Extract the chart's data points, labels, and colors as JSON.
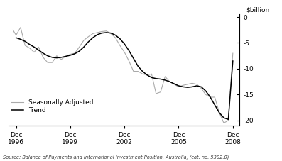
{
  "title": "",
  "ylabel": "$billion",
  "source": "Source: Balance of Payments and International Investment Position, Australia, (cat. no. 5302.0)",
  "ylim": [
    -21,
    0.5
  ],
  "yticks": [
    0,
    -5,
    -10,
    -15,
    -20
  ],
  "xtick_labels": [
    "Dec\n1996",
    "Dec\n1999",
    "Dec\n2002",
    "Dec\n2005",
    "Dec\n2008"
  ],
  "xtick_positions": [
    1996.92,
    1999.92,
    2002.92,
    2005.92,
    2008.92
  ],
  "trend_color": "#000000",
  "sa_color": "#aaaaaa",
  "background_color": "#ffffff",
  "legend_labels": [
    "Trend",
    "Seasonally Adjusted"
  ],
  "trend_x": [
    1996.92,
    1997.17,
    1997.42,
    1997.67,
    1997.92,
    1998.17,
    1998.42,
    1998.67,
    1998.92,
    1999.17,
    1999.42,
    1999.67,
    1999.92,
    2000.17,
    2000.42,
    2000.67,
    2000.92,
    2001.17,
    2001.42,
    2001.67,
    2001.92,
    2002.17,
    2002.42,
    2002.67,
    2002.92,
    2003.17,
    2003.42,
    2003.67,
    2003.92,
    2004.17,
    2004.42,
    2004.67,
    2004.92,
    2005.17,
    2005.42,
    2005.67,
    2005.92,
    2006.17,
    2006.42,
    2006.67,
    2006.92,
    2007.17,
    2007.42,
    2007.67,
    2007.92,
    2008.17,
    2008.42,
    2008.67,
    2008.92
  ],
  "trend_y": [
    -4.0,
    -4.3,
    -4.7,
    -5.3,
    -5.8,
    -6.4,
    -7.0,
    -7.5,
    -7.8,
    -7.9,
    -7.8,
    -7.6,
    -7.4,
    -7.1,
    -6.6,
    -5.8,
    -4.8,
    -4.0,
    -3.4,
    -3.1,
    -3.0,
    -3.1,
    -3.5,
    -4.2,
    -5.2,
    -6.5,
    -8.0,
    -9.5,
    -10.5,
    -11.2,
    -11.7,
    -11.9,
    -12.0,
    -12.2,
    -12.5,
    -12.9,
    -13.3,
    -13.5,
    -13.6,
    -13.5,
    -13.3,
    -13.5,
    -14.3,
    -15.5,
    -17.0,
    -18.5,
    -19.5,
    -19.8,
    -8.5
  ],
  "sa_x": [
    1996.75,
    1996.92,
    1997.17,
    1997.42,
    1997.67,
    1997.92,
    1998.17,
    1998.42,
    1998.67,
    1998.92,
    1999.17,
    1999.42,
    1999.67,
    1999.92,
    2000.17,
    2000.42,
    2000.67,
    2000.92,
    2001.17,
    2001.42,
    2001.67,
    2001.92,
    2002.17,
    2002.42,
    2002.67,
    2002.92,
    2003.17,
    2003.42,
    2003.67,
    2003.92,
    2004.17,
    2004.42,
    2004.67,
    2004.92,
    2005.17,
    2005.42,
    2005.67,
    2005.92,
    2006.17,
    2006.42,
    2006.67,
    2006.92,
    2007.17,
    2007.42,
    2007.67,
    2007.92,
    2008.17,
    2008.42,
    2008.67,
    2008.92
  ],
  "sa_y": [
    -2.5,
    -3.5,
    -2.0,
    -5.5,
    -6.0,
    -6.8,
    -5.8,
    -7.8,
    -8.8,
    -8.8,
    -7.5,
    -8.2,
    -7.6,
    -7.2,
    -7.0,
    -5.8,
    -4.5,
    -3.8,
    -3.2,
    -3.0,
    -2.8,
    -2.7,
    -3.2,
    -4.0,
    -5.5,
    -6.8,
    -8.5,
    -10.5,
    -10.5,
    -11.0,
    -11.2,
    -11.0,
    -14.8,
    -14.5,
    -11.5,
    -12.5,
    -13.0,
    -13.5,
    -13.2,
    -13.0,
    -12.8,
    -13.0,
    -13.8,
    -15.0,
    -15.5,
    -15.5,
    -18.5,
    -20.5,
    -20.0,
    -7.0
  ]
}
